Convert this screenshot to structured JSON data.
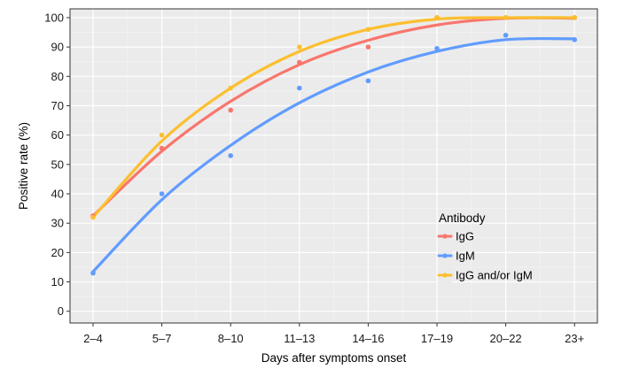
{
  "chart_data": {
    "type": "line",
    "xlabel": "Days after symptoms onset",
    "ylabel": "Positive rate (%)",
    "categories": [
      "2–4",
      "5–7",
      "8–10",
      "11–13",
      "14–16",
      "17–19",
      "20–22",
      "23+"
    ],
    "yticks": [
      0,
      10,
      20,
      30,
      40,
      50,
      60,
      70,
      80,
      90,
      100
    ],
    "ylim": [
      -4,
      103
    ],
    "grid": true,
    "legend": {
      "title": "Antibody",
      "placement": "bottom-right (inside plot)"
    },
    "series": [
      {
        "name": "IgG",
        "color": "#f8766d",
        "points": [
          32.5,
          55.5,
          68.5,
          84.8,
          90,
          100,
          100,
          100
        ],
        "fit": [
          32.5,
          54.5,
          71.5,
          84.0,
          92.3,
          97.5,
          99.8,
          99.8
        ]
      },
      {
        "name": "IgM",
        "color": "#619cff",
        "points": [
          13,
          40,
          53,
          76,
          78.5,
          89.5,
          94,
          92.5
        ],
        "fit": [
          13.5,
          38.0,
          56.5,
          71.0,
          81.5,
          88.5,
          92.5,
          92.8
        ]
      },
      {
        "name": "IgG and/or IgM",
        "color": "#fcbf2e",
        "points": [
          32,
          60,
          76,
          90,
          96,
          100,
          100,
          100
        ],
        "fit": [
          32.0,
          58.0,
          76.0,
          88.5,
          96.0,
          99.5,
          100,
          100
        ]
      }
    ]
  }
}
